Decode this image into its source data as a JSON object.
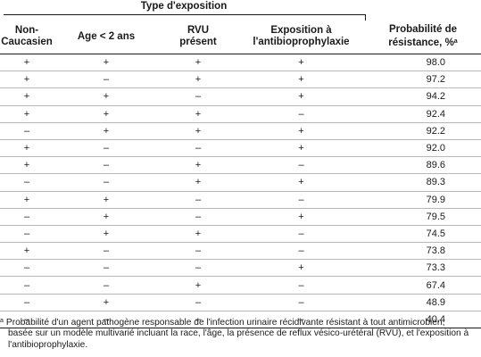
{
  "table": {
    "group_header": "Type d'exposition",
    "headers": {
      "col1": "Non-\nCaucasien",
      "col2": "Age < 2 ans",
      "col3": "RVU\nprésent",
      "col4": "Exposition à\nl'antibioprophylaxie",
      "col5": "Probabilité de\nrésistance, %",
      "col5_sup": "a"
    },
    "rows": [
      {
        "c1": "+",
        "c2": "+",
        "c3": "+",
        "c4": "+",
        "p": "98.0"
      },
      {
        "c1": "+",
        "c2": "–",
        "c3": "+",
        "c4": "+",
        "p": "97.2"
      },
      {
        "c1": "+",
        "c2": "+",
        "c3": "–",
        "c4": "+",
        "p": "94.2"
      },
      {
        "c1": "+",
        "c2": "+",
        "c3": "+",
        "c4": "–",
        "p": "92.4"
      },
      {
        "c1": "–",
        "c2": "+",
        "c3": "+",
        "c4": "+",
        "p": "92.2"
      },
      {
        "c1": "+",
        "c2": "–",
        "c3": "–",
        "c4": "+",
        "p": "92.0"
      },
      {
        "c1": "+",
        "c2": "–",
        "c3": "+",
        "c4": "–",
        "p": "89.6"
      },
      {
        "c1": "–",
        "c2": "–",
        "c3": "+",
        "c4": "+",
        "p": "89.3"
      },
      {
        "c1": "+",
        "c2": "+",
        "c3": "–",
        "c4": "–",
        "p": "79.9"
      },
      {
        "c1": "–",
        "c2": "+",
        "c3": "–",
        "c4": "+",
        "p": "79.5"
      },
      {
        "c1": "–",
        "c2": "+",
        "c3": "+",
        "c4": "–",
        "p": "74.5"
      },
      {
        "c1": "+",
        "c2": "–",
        "c3": "–",
        "c4": "–",
        "p": "73.8"
      },
      {
        "c1": "–",
        "c2": "–",
        "c3": "–",
        "c4": "+",
        "p": "73.3"
      },
      {
        "c1": "–",
        "c2": "–",
        "c3": "+",
        "c4": "–",
        "p": "67.4"
      },
      {
        "c1": "–",
        "c2": "+",
        "c3": "–",
        "c4": "–",
        "p": "48.9"
      },
      {
        "c1": "–",
        "c2": "–",
        "c3": "–",
        "c4": "–",
        "p": "40.4"
      }
    ]
  },
  "footnote": {
    "mark": "a",
    "line1": "Probabilité d'un agent pathogène responsable de l'infection urinaire récidivante résistant à tout antimicrobien,",
    "line2": "basée sur un modèle multivarié incluant la race, l'âge, la présence de reflux vésico-urétéral (RVU), et l'exposition à",
    "line3": "l'antibioprophylaxie."
  }
}
